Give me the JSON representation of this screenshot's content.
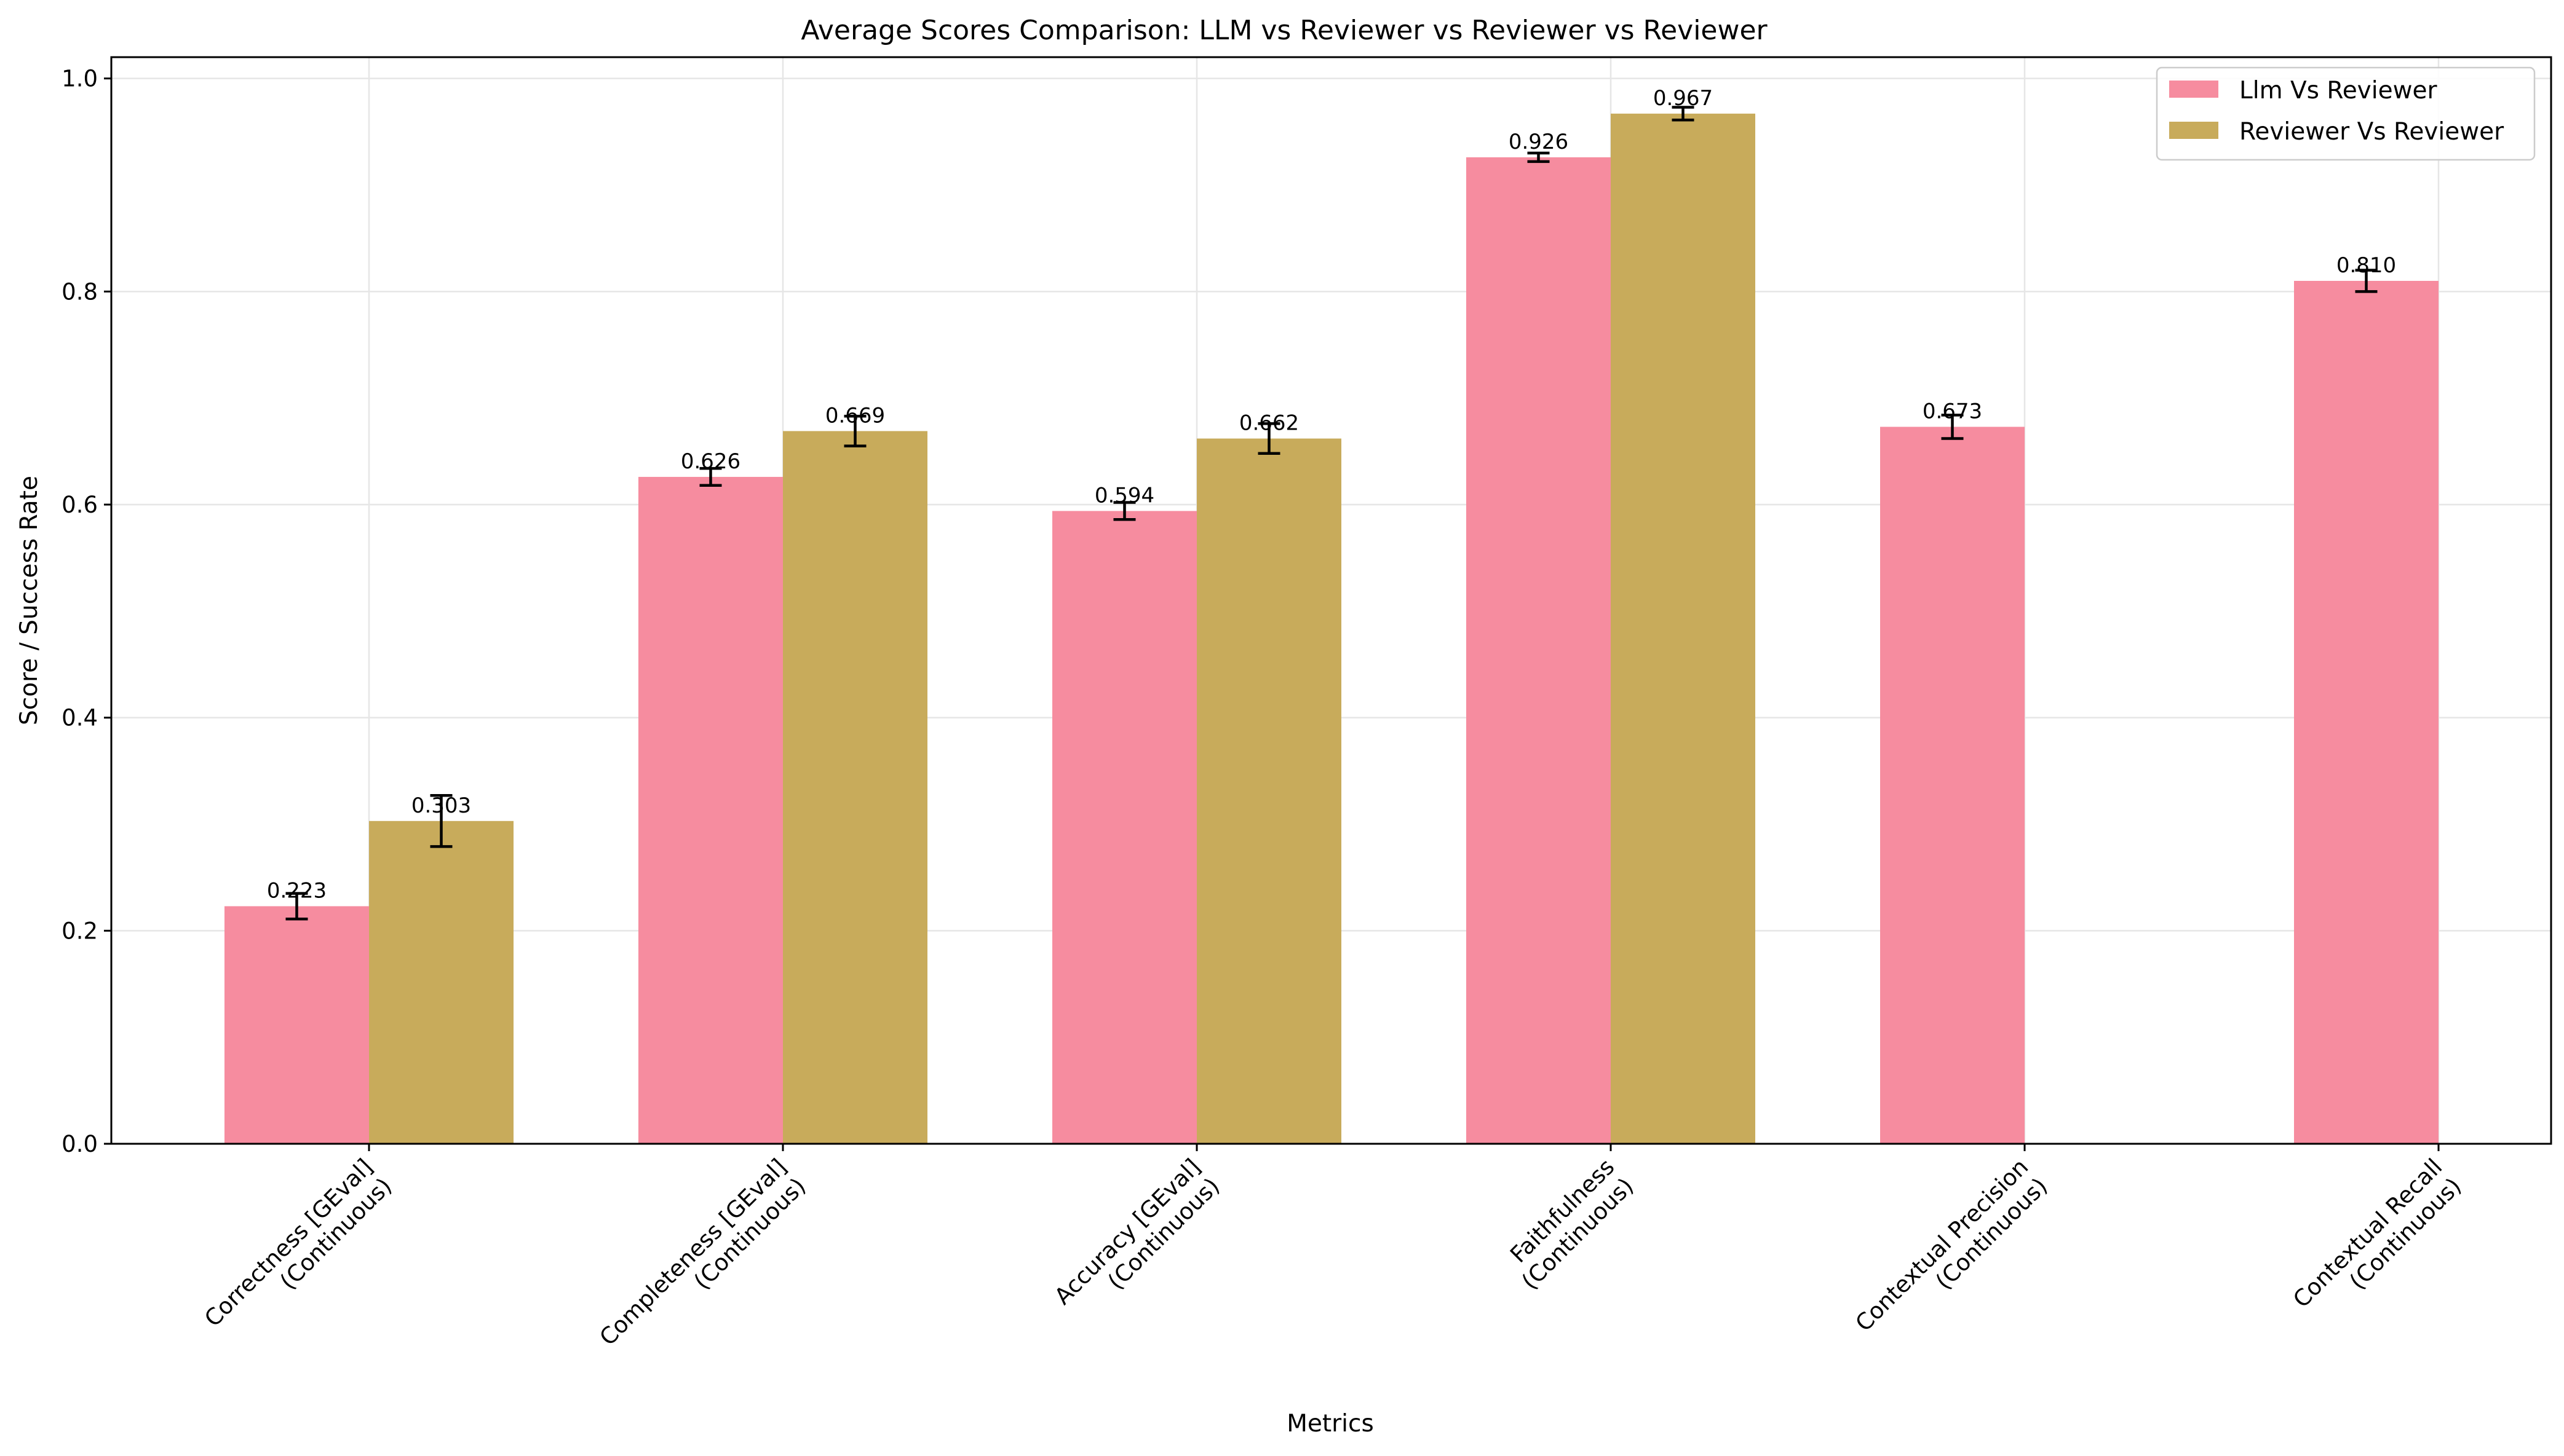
{
  "chart_data": {
    "type": "bar",
    "title": "Average Scores Comparison: LLM vs Reviewer vs Reviewer vs Reviewer",
    "xlabel": "Metrics",
    "ylabel": "Score / Success Rate",
    "ylim": [
      0,
      1.02
    ],
    "yticks": [
      "0.0",
      "0.2",
      "0.4",
      "0.6",
      "0.8",
      "1.0"
    ],
    "ytick_values": [
      0,
      0.2,
      0.4,
      0.6,
      0.8,
      1.0
    ],
    "grid": true,
    "legend_position": "top-right",
    "categories": [
      [
        "Correctness [GEval]",
        "(Continuous)"
      ],
      [
        "Completeness [GEval]",
        "(Continuous)"
      ],
      [
        "Accuracy [GEval]",
        "(Continuous)"
      ],
      [
        "Faithfulness",
        "(Continuous)"
      ],
      [
        "Contextual Precision",
        "(Continuous)"
      ],
      [
        "Contextual Recall",
        "(Continuous)"
      ]
    ],
    "series": [
      {
        "name": "Llm Vs Reviewer",
        "color": "#f68c9f",
        "values": [
          0.223,
          0.626,
          0.594,
          0.926,
          0.673,
          0.81
        ],
        "labels": [
          "0.223",
          "0.626",
          "0.594",
          "0.926",
          "0.673",
          "0.810"
        ],
        "errors": [
          0.012,
          0.008,
          0.008,
          0.004,
          0.011,
          0.01
        ]
      },
      {
        "name": "Reviewer Vs Reviewer",
        "color": "#c8ab5b",
        "values": [
          0.303,
          0.669,
          0.662,
          0.967,
          null,
          null
        ],
        "labels": [
          "0.303",
          "0.669",
          "0.662",
          "0.967",
          null,
          null
        ],
        "errors": [
          0.024,
          0.014,
          0.014,
          0.006,
          null,
          null
        ]
      }
    ]
  }
}
